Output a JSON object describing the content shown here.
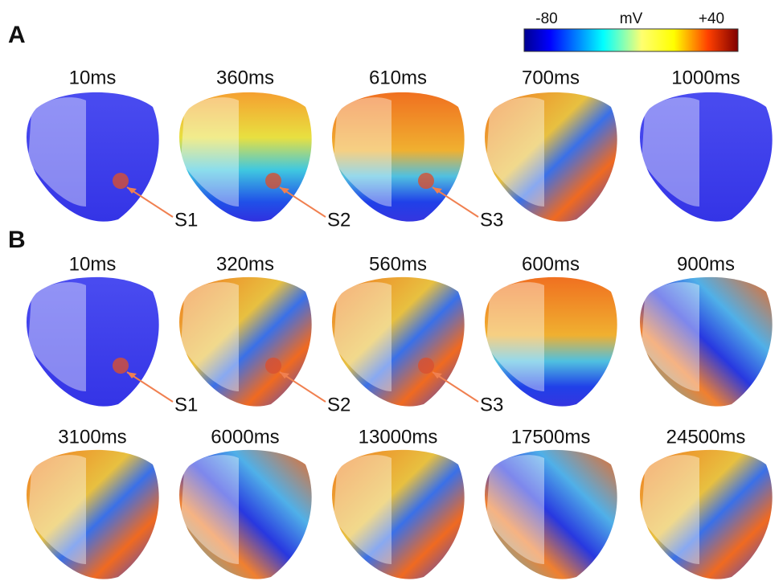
{
  "colorbar": {
    "min_label": "-80",
    "unit": "mV",
    "max_label": "+40"
  },
  "panels": [
    {
      "label": "A",
      "rows": [
        {
          "frames": [
            {
              "time": "10ms",
              "stimulus": "S1"
            },
            {
              "time": "360ms",
              "stimulus": "S2"
            },
            {
              "time": "610ms",
              "stimulus": "S3"
            },
            {
              "time": "700ms"
            },
            {
              "time": "1000ms"
            }
          ]
        }
      ]
    },
    {
      "label": "B",
      "rows": [
        {
          "frames": [
            {
              "time": "10ms",
              "stimulus": "S1"
            },
            {
              "time": "320ms",
              "stimulus": "S2"
            },
            {
              "time": "560ms",
              "stimulus": "S3"
            },
            {
              "time": "600ms"
            },
            {
              "time": "900ms"
            }
          ]
        },
        {
          "frames": [
            {
              "time": "3100ms"
            },
            {
              "time": "6000ms"
            },
            {
              "time": "13000ms"
            },
            {
              "time": "17500ms"
            },
            {
              "time": "24500ms"
            }
          ]
        }
      ]
    }
  ]
}
